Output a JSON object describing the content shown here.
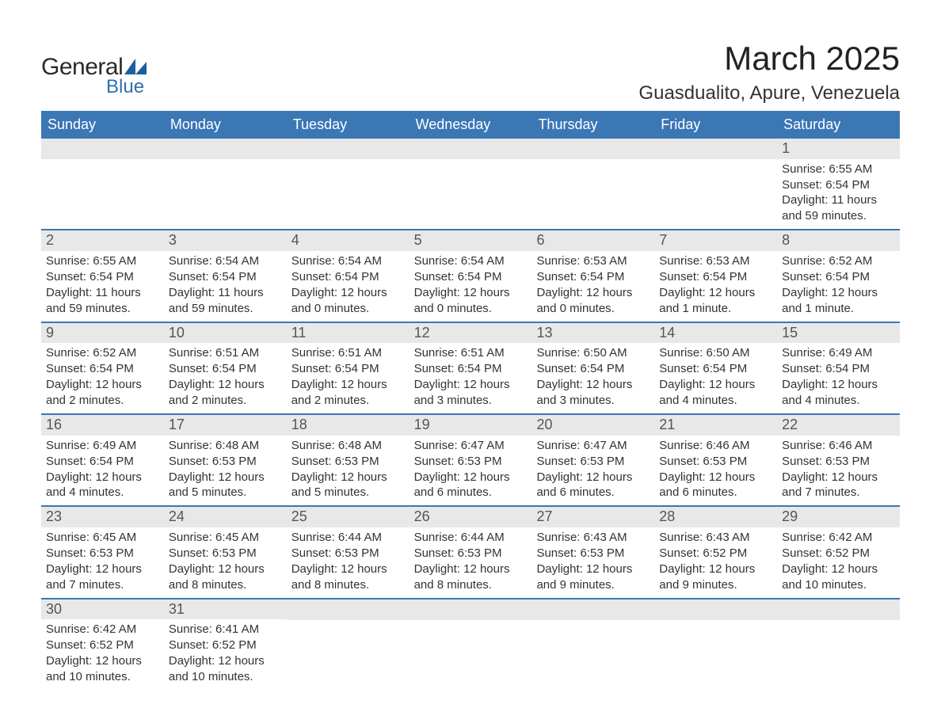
{
  "logo": {
    "general": "General",
    "blue": "Blue",
    "mark_color": "#1e5ea0"
  },
  "title": "March 2025",
  "location": "Guasdualito, Apure, Venezuela",
  "header_bg": "#3b77b5",
  "strip_bg": "#e8e8e8",
  "row_border": "#3b77b5",
  "weekdays": [
    "Sunday",
    "Monday",
    "Tuesday",
    "Wednesday",
    "Thursday",
    "Friday",
    "Saturday"
  ],
  "weeks": [
    [
      null,
      null,
      null,
      null,
      null,
      null,
      {
        "n": "1",
        "sunrise": "Sunrise: 6:55 AM",
        "sunset": "Sunset: 6:54 PM",
        "day": "Daylight: 11 hours and 59 minutes."
      }
    ],
    [
      {
        "n": "2",
        "sunrise": "Sunrise: 6:55 AM",
        "sunset": "Sunset: 6:54 PM",
        "day": "Daylight: 11 hours and 59 minutes."
      },
      {
        "n": "3",
        "sunrise": "Sunrise: 6:54 AM",
        "sunset": "Sunset: 6:54 PM",
        "day": "Daylight: 11 hours and 59 minutes."
      },
      {
        "n": "4",
        "sunrise": "Sunrise: 6:54 AM",
        "sunset": "Sunset: 6:54 PM",
        "day": "Daylight: 12 hours and 0 minutes."
      },
      {
        "n": "5",
        "sunrise": "Sunrise: 6:54 AM",
        "sunset": "Sunset: 6:54 PM",
        "day": "Daylight: 12 hours and 0 minutes."
      },
      {
        "n": "6",
        "sunrise": "Sunrise: 6:53 AM",
        "sunset": "Sunset: 6:54 PM",
        "day": "Daylight: 12 hours and 0 minutes."
      },
      {
        "n": "7",
        "sunrise": "Sunrise: 6:53 AM",
        "sunset": "Sunset: 6:54 PM",
        "day": "Daylight: 12 hours and 1 minute."
      },
      {
        "n": "8",
        "sunrise": "Sunrise: 6:52 AM",
        "sunset": "Sunset: 6:54 PM",
        "day": "Daylight: 12 hours and 1 minute."
      }
    ],
    [
      {
        "n": "9",
        "sunrise": "Sunrise: 6:52 AM",
        "sunset": "Sunset: 6:54 PM",
        "day": "Daylight: 12 hours and 2 minutes."
      },
      {
        "n": "10",
        "sunrise": "Sunrise: 6:51 AM",
        "sunset": "Sunset: 6:54 PM",
        "day": "Daylight: 12 hours and 2 minutes."
      },
      {
        "n": "11",
        "sunrise": "Sunrise: 6:51 AM",
        "sunset": "Sunset: 6:54 PM",
        "day": "Daylight: 12 hours and 2 minutes."
      },
      {
        "n": "12",
        "sunrise": "Sunrise: 6:51 AM",
        "sunset": "Sunset: 6:54 PM",
        "day": "Daylight: 12 hours and 3 minutes."
      },
      {
        "n": "13",
        "sunrise": "Sunrise: 6:50 AM",
        "sunset": "Sunset: 6:54 PM",
        "day": "Daylight: 12 hours and 3 minutes."
      },
      {
        "n": "14",
        "sunrise": "Sunrise: 6:50 AM",
        "sunset": "Sunset: 6:54 PM",
        "day": "Daylight: 12 hours and 4 minutes."
      },
      {
        "n": "15",
        "sunrise": "Sunrise: 6:49 AM",
        "sunset": "Sunset: 6:54 PM",
        "day": "Daylight: 12 hours and 4 minutes."
      }
    ],
    [
      {
        "n": "16",
        "sunrise": "Sunrise: 6:49 AM",
        "sunset": "Sunset: 6:54 PM",
        "day": "Daylight: 12 hours and 4 minutes."
      },
      {
        "n": "17",
        "sunrise": "Sunrise: 6:48 AM",
        "sunset": "Sunset: 6:53 PM",
        "day": "Daylight: 12 hours and 5 minutes."
      },
      {
        "n": "18",
        "sunrise": "Sunrise: 6:48 AM",
        "sunset": "Sunset: 6:53 PM",
        "day": "Daylight: 12 hours and 5 minutes."
      },
      {
        "n": "19",
        "sunrise": "Sunrise: 6:47 AM",
        "sunset": "Sunset: 6:53 PM",
        "day": "Daylight: 12 hours and 6 minutes."
      },
      {
        "n": "20",
        "sunrise": "Sunrise: 6:47 AM",
        "sunset": "Sunset: 6:53 PM",
        "day": "Daylight: 12 hours and 6 minutes."
      },
      {
        "n": "21",
        "sunrise": "Sunrise: 6:46 AM",
        "sunset": "Sunset: 6:53 PM",
        "day": "Daylight: 12 hours and 6 minutes."
      },
      {
        "n": "22",
        "sunrise": "Sunrise: 6:46 AM",
        "sunset": "Sunset: 6:53 PM",
        "day": "Daylight: 12 hours and 7 minutes."
      }
    ],
    [
      {
        "n": "23",
        "sunrise": "Sunrise: 6:45 AM",
        "sunset": "Sunset: 6:53 PM",
        "day": "Daylight: 12 hours and 7 minutes."
      },
      {
        "n": "24",
        "sunrise": "Sunrise: 6:45 AM",
        "sunset": "Sunset: 6:53 PM",
        "day": "Daylight: 12 hours and 8 minutes."
      },
      {
        "n": "25",
        "sunrise": "Sunrise: 6:44 AM",
        "sunset": "Sunset: 6:53 PM",
        "day": "Daylight: 12 hours and 8 minutes."
      },
      {
        "n": "26",
        "sunrise": "Sunrise: 6:44 AM",
        "sunset": "Sunset: 6:53 PM",
        "day": "Daylight: 12 hours and 8 minutes."
      },
      {
        "n": "27",
        "sunrise": "Sunrise: 6:43 AM",
        "sunset": "Sunset: 6:53 PM",
        "day": "Daylight: 12 hours and 9 minutes."
      },
      {
        "n": "28",
        "sunrise": "Sunrise: 6:43 AM",
        "sunset": "Sunset: 6:52 PM",
        "day": "Daylight: 12 hours and 9 minutes."
      },
      {
        "n": "29",
        "sunrise": "Sunrise: 6:42 AM",
        "sunset": "Sunset: 6:52 PM",
        "day": "Daylight: 12 hours and 10 minutes."
      }
    ],
    [
      {
        "n": "30",
        "sunrise": "Sunrise: 6:42 AM",
        "sunset": "Sunset: 6:52 PM",
        "day": "Daylight: 12 hours and 10 minutes."
      },
      {
        "n": "31",
        "sunrise": "Sunrise: 6:41 AM",
        "sunset": "Sunset: 6:52 PM",
        "day": "Daylight: 12 hours and 10 minutes."
      },
      null,
      null,
      null,
      null,
      null
    ]
  ]
}
